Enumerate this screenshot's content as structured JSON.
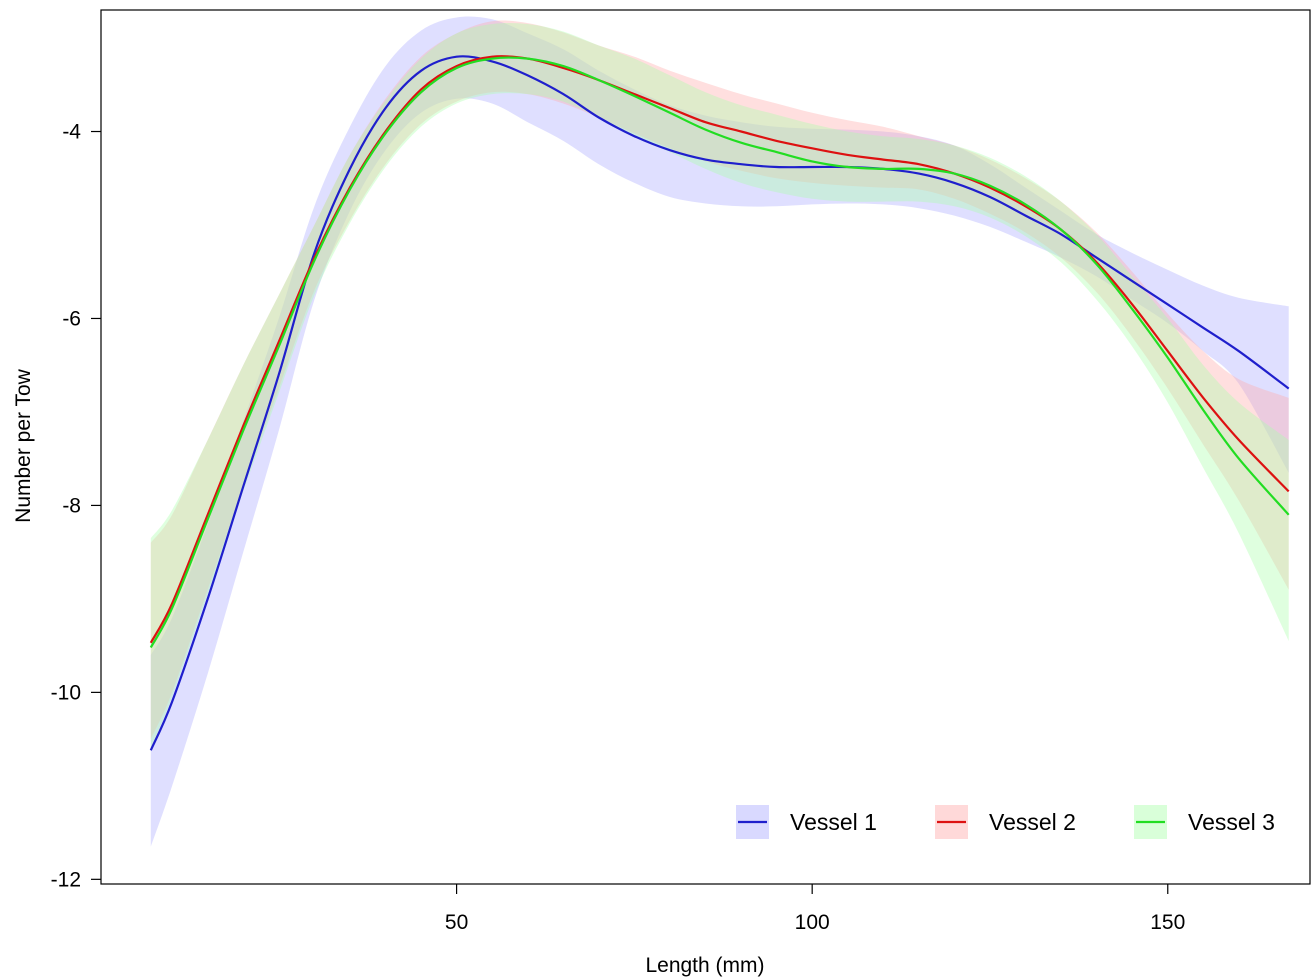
{
  "chart_data": {
    "type": "line",
    "title": "",
    "xlabel": "Length (mm)",
    "ylabel": "Number per Tow",
    "xlim": [
      0,
      170
    ],
    "ylim": [
      -12.05,
      -2.7
    ],
    "x_ticks": [
      50,
      100,
      150
    ],
    "y_ticks": [
      -12,
      -10,
      -8,
      -6,
      -4
    ],
    "grid": false,
    "legend_position": "bottom-right",
    "x": [
      7,
      10,
      15,
      20,
      25,
      30,
      35,
      40,
      45,
      50,
      55,
      60,
      65,
      70,
      75,
      80,
      85,
      90,
      95,
      100,
      105,
      110,
      115,
      120,
      125,
      130,
      135,
      140,
      145,
      150,
      155,
      160,
      167
    ],
    "series": [
      {
        "name": "Vessel 1",
        "color": "#1f1fcc",
        "band_color": "#aaaaff",
        "values": [
          -10.62,
          -10.1,
          -9.0,
          -7.8,
          -6.6,
          -5.3,
          -4.4,
          -3.75,
          -3.35,
          -3.2,
          -3.25,
          -3.4,
          -3.6,
          -3.85,
          -4.05,
          -4.2,
          -4.3,
          -4.35,
          -4.38,
          -4.38,
          -4.38,
          -4.4,
          -4.45,
          -4.55,
          -4.7,
          -4.9,
          -5.1,
          -5.35,
          -5.6,
          -5.85,
          -6.1,
          -6.35,
          -6.75
        ],
        "lower": [
          -11.65,
          -11.0,
          -9.8,
          -8.5,
          -7.2,
          -5.8,
          -4.85,
          -4.2,
          -3.8,
          -3.65,
          -3.7,
          -3.9,
          -4.1,
          -4.35,
          -4.55,
          -4.7,
          -4.77,
          -4.8,
          -4.8,
          -4.78,
          -4.77,
          -4.78,
          -4.82,
          -4.9,
          -5.02,
          -5.18,
          -5.35,
          -5.55,
          -5.8,
          -6.05,
          -6.35,
          -6.7,
          -7.65
        ],
        "upper": [
          -9.6,
          -9.2,
          -8.2,
          -7.1,
          -6.0,
          -4.8,
          -3.95,
          -3.3,
          -2.92,
          -2.78,
          -2.8,
          -2.95,
          -3.12,
          -3.35,
          -3.55,
          -3.72,
          -3.83,
          -3.9,
          -3.95,
          -3.97,
          -3.98,
          -4.0,
          -4.05,
          -4.15,
          -4.35,
          -4.6,
          -4.85,
          -5.1,
          -5.3,
          -5.48,
          -5.65,
          -5.78,
          -5.87
        ]
      },
      {
        "name": "Vessel 2",
        "color": "#dd1111",
        "band_color": "#ffaaaa",
        "values": [
          -9.47,
          -9.05,
          -8.1,
          -7.15,
          -6.25,
          -5.35,
          -4.6,
          -4.0,
          -3.55,
          -3.3,
          -3.2,
          -3.22,
          -3.32,
          -3.45,
          -3.6,
          -3.75,
          -3.9,
          -4.0,
          -4.1,
          -4.18,
          -4.25,
          -4.3,
          -4.35,
          -4.45,
          -4.6,
          -4.8,
          -5.05,
          -5.4,
          -5.85,
          -6.35,
          -6.85,
          -7.3,
          -7.85
        ],
        "lower": [
          -10.5,
          -10.0,
          -8.9,
          -7.8,
          -6.75,
          -5.7,
          -4.95,
          -4.35,
          -3.92,
          -3.68,
          -3.58,
          -3.6,
          -3.7,
          -3.85,
          -4.02,
          -4.18,
          -4.32,
          -4.42,
          -4.5,
          -4.55,
          -4.58,
          -4.6,
          -4.62,
          -4.72,
          -4.88,
          -5.08,
          -5.35,
          -5.72,
          -6.2,
          -6.75,
          -7.35,
          -7.95,
          -8.9
        ],
        "upper": [
          -8.4,
          -8.1,
          -7.3,
          -6.5,
          -5.75,
          -5.0,
          -4.25,
          -3.65,
          -3.2,
          -2.95,
          -2.82,
          -2.84,
          -2.94,
          -3.08,
          -3.2,
          -3.35,
          -3.48,
          -3.6,
          -3.7,
          -3.8,
          -3.88,
          -3.95,
          -4.05,
          -4.15,
          -4.3,
          -4.5,
          -4.75,
          -5.08,
          -5.5,
          -5.95,
          -6.35,
          -6.65,
          -6.85
        ]
      },
      {
        "name": "Vessel 3",
        "color": "#22dd22",
        "band_color": "#aaffaa",
        "values": [
          -9.52,
          -9.1,
          -8.15,
          -7.2,
          -6.3,
          -5.38,
          -4.62,
          -4.02,
          -3.58,
          -3.32,
          -3.22,
          -3.22,
          -3.3,
          -3.45,
          -3.62,
          -3.8,
          -3.98,
          -4.12,
          -4.22,
          -4.32,
          -4.38,
          -4.4,
          -4.4,
          -4.45,
          -4.58,
          -4.78,
          -5.05,
          -5.42,
          -5.9,
          -6.42,
          -6.98,
          -7.5,
          -8.1
        ],
        "lower": [
          -10.6,
          -10.05,
          -8.95,
          -7.85,
          -6.8,
          -5.75,
          -4.98,
          -4.38,
          -3.95,
          -3.7,
          -3.6,
          -3.6,
          -3.68,
          -3.85,
          -4.05,
          -4.22,
          -4.4,
          -4.55,
          -4.65,
          -4.72,
          -4.75,
          -4.75,
          -4.75,
          -4.8,
          -4.92,
          -5.12,
          -5.4,
          -5.8,
          -6.3,
          -6.9,
          -7.6,
          -8.3,
          -9.45
        ],
        "upper": [
          -8.35,
          -8.05,
          -7.3,
          -6.5,
          -5.75,
          -5.0,
          -4.25,
          -3.67,
          -3.22,
          -2.95,
          -2.85,
          -2.85,
          -2.93,
          -3.08,
          -3.22,
          -3.4,
          -3.58,
          -3.72,
          -3.82,
          -3.92,
          -4.0,
          -4.05,
          -4.08,
          -4.15,
          -4.28,
          -4.48,
          -4.75,
          -5.1,
          -5.55,
          -6.0,
          -6.5,
          -6.9,
          -7.3
        ]
      }
    ]
  }
}
